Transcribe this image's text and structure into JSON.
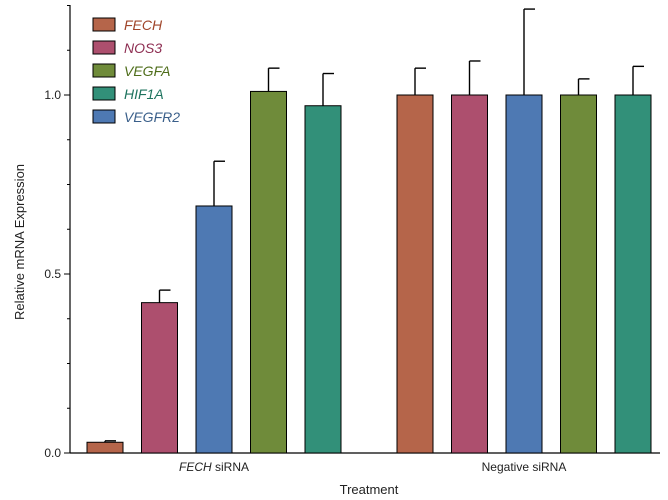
{
  "chart_data": {
    "type": "bar",
    "xlabel": "Treatment",
    "ylabel": "Relative mRNA Expression",
    "ylim": [
      0,
      1.25
    ],
    "yticks": [
      "0.0",
      "0.5",
      "1.0"
    ],
    "legend_placement": "top-left",
    "grid": false,
    "groups": [
      {
        "label_italic": "FECH",
        "label_rest": " siRNA",
        "bars": [
          {
            "series": "FECH",
            "value": 0.03,
            "error": 0.004
          },
          {
            "series": "NOS3",
            "value": 0.42,
            "error": 0.035
          },
          {
            "series": "VEGFR2",
            "value": 0.69,
            "error": 0.125
          },
          {
            "series": "VEGFA",
            "value": 1.01,
            "error": 0.065
          },
          {
            "series": "HIF1A",
            "value": 0.97,
            "error": 0.09
          }
        ]
      },
      {
        "label_italic": "",
        "label_rest": "Negative siRNA",
        "bars": [
          {
            "series": "FECH",
            "value": 1.0,
            "error": 0.075
          },
          {
            "series": "NOS3",
            "value": 1.0,
            "error": 0.095
          },
          {
            "series": "VEGFR2",
            "value": 1.0,
            "error": 0.24
          },
          {
            "series": "VEGFA",
            "value": 1.0,
            "error": 0.045
          },
          {
            "series": "HIF1A",
            "value": 1.0,
            "error": 0.08
          }
        ]
      }
    ],
    "legend": [
      {
        "name": "FECH",
        "color": "#b5654a",
        "text_color": "#a0452a"
      },
      {
        "name": "NOS3",
        "color": "#ad4f6e",
        "text_color": "#8e2e52"
      },
      {
        "name": "VEGFA",
        "color": "#6f8b3a",
        "text_color": "#4e6d1a"
      },
      {
        "name": "HIF1A",
        "color": "#329079",
        "text_color": "#1d735e"
      },
      {
        "name": "VEGFR2",
        "color": "#4e79b3",
        "text_color": "#3a5f8a"
      }
    ]
  }
}
